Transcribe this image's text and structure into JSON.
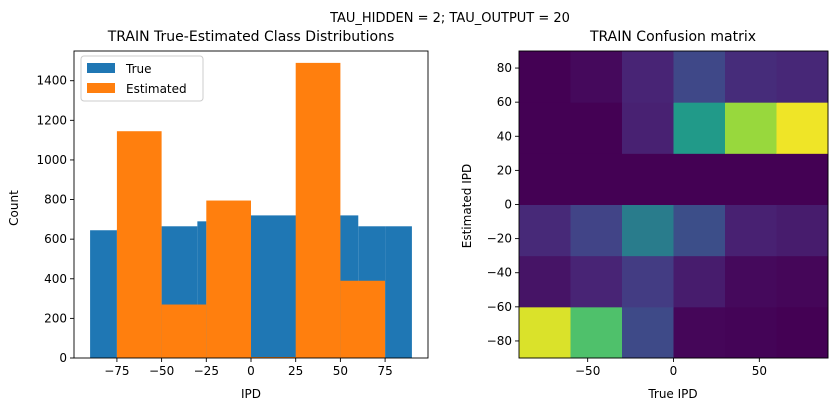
{
  "suptitle": "TAU_HIDDEN = 2; TAU_OUTPUT = 20",
  "colors": {
    "true": "#1f77b4",
    "estimated": "#ff7f0e"
  },
  "chart_data": [
    {
      "type": "bar",
      "title": "TRAIN True-Estimated Class Distributions",
      "xlabel": "IPD",
      "ylabel": "Count",
      "xlim": [
        -99,
        99
      ],
      "ylim": [
        0,
        1550
      ],
      "xticks": [
        -75,
        -50,
        -25,
        0,
        25,
        50,
        75
      ],
      "xtick_labels": [
        "−75",
        "−50",
        "−25",
        "0",
        "25",
        "50",
        "75"
      ],
      "yticks": [
        0,
        200,
        400,
        600,
        800,
        1000,
        1200,
        1400
      ],
      "yticks_labels": [
        "0",
        "200",
        "400",
        "600",
        "800",
        "1000",
        "1200",
        "1400"
      ],
      "legend": {
        "position": "top-left",
        "entries": [
          "True",
          "Estimated"
        ]
      },
      "series": [
        {
          "name": "True",
          "bins": [
            {
              "x0": -90,
              "x1": -75,
              "value": 645
            },
            {
              "x0": -75,
              "x1": -50,
              "value": 650
            },
            {
              "x0": -50,
              "x1": -30,
              "value": 665
            },
            {
              "x0": -30,
              "x1": -25,
              "value": 690
            },
            {
              "x0": -25,
              "x1": 0,
              "value": 690
            },
            {
              "x0": 0,
              "x1": 30,
              "value": 720
            },
            {
              "x0": 30,
              "x1": 50,
              "value": 720
            },
            {
              "x0": 50,
              "x1": 60,
              "value": 720
            },
            {
              "x0": 60,
              "x1": 75,
              "value": 665
            },
            {
              "x0": 75,
              "x1": 90,
              "value": 665
            }
          ]
        },
        {
          "name": "Estimated",
          "bins": [
            {
              "x0": -75,
              "x1": -50,
              "value": 1145
            },
            {
              "x0": -50,
              "x1": -25,
              "value": 270
            },
            {
              "x0": -25,
              "x1": 0,
              "value": 795
            },
            {
              "x0": 0,
              "x1": 25,
              "value": 5
            },
            {
              "x0": 25,
              "x1": 50,
              "value": 1490
            },
            {
              "x0": 50,
              "x1": 75,
              "value": 390
            }
          ]
        }
      ]
    },
    {
      "type": "heatmap",
      "title": "TRAIN Confusion matrix",
      "xlabel": "True IPD",
      "ylabel": "Estimated IPD",
      "xlim": [
        -90,
        90
      ],
      "ylim": [
        -90,
        90
      ],
      "xticks": [
        -50,
        0,
        50
      ],
      "xtick_labels": [
        "−50",
        "0",
        "50"
      ],
      "yticks": [
        -80,
        -60,
        -40,
        -20,
        0,
        20,
        40,
        60,
        80
      ],
      "ytick_labels": [
        "−80",
        "−60",
        "−40",
        "−20",
        "0",
        "20",
        "40",
        "60",
        "80"
      ],
      "bins": [
        -90,
        -60,
        -30,
        0,
        30,
        60,
        90
      ],
      "matrix_bottom_to_top": [
        [
          0.95,
          0.72,
          0.28,
          0.02,
          0.01,
          0.0
        ],
        [
          0.07,
          0.13,
          0.22,
          0.1,
          0.03,
          0.02
        ],
        [
          0.15,
          0.25,
          0.45,
          0.3,
          0.12,
          0.1
        ],
        [
          0.0,
          0.0,
          0.0,
          0.0,
          0.0,
          0.0
        ],
        [
          0.0,
          0.0,
          0.12,
          0.55,
          0.85,
          0.98
        ],
        [
          0.0,
          0.03,
          0.13,
          0.27,
          0.16,
          0.14
        ]
      ]
    }
  ]
}
